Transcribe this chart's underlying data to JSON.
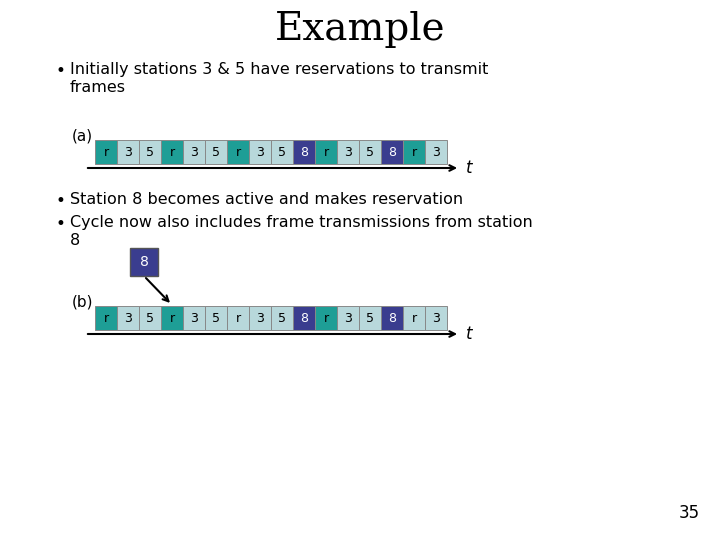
{
  "title": "Example",
  "bullet1_line1": "Initially stations 3 & 5 have reservations to transmit",
  "bullet1_line2": "  frames",
  "bullet2a": "Station 8 becomes active and makes reservation",
  "bullet2b_line1": "Cycle now also includes frame transmissions from station",
  "bullet2b_line2": "  8",
  "label_a": "(a)",
  "label_b": "(b)",
  "page_number": "35",
  "row_a": [
    "r",
    "3",
    "5",
    "r",
    "3",
    "5",
    "r",
    "3",
    "5",
    "8",
    "r",
    "3",
    "5",
    "8",
    "r",
    "3"
  ],
  "row_b": [
    "r",
    "3",
    "5",
    "r",
    "3",
    "5",
    "r",
    "3",
    "5",
    "8",
    "r",
    "3",
    "5",
    "8",
    "r",
    "3"
  ],
  "color_teal": "#1e9e96",
  "color_light": "#b8d8db",
  "color_8": "#3a3d8f",
  "color_edge": "#888888",
  "bg_color": "#ffffff",
  "teal_indices_a": [
    0,
    3,
    6,
    10,
    14
  ],
  "eight_indices_a": [
    9,
    13
  ],
  "teal_indices_b": [
    0,
    3,
    10
  ],
  "eight_indices_b": [
    9,
    13
  ]
}
